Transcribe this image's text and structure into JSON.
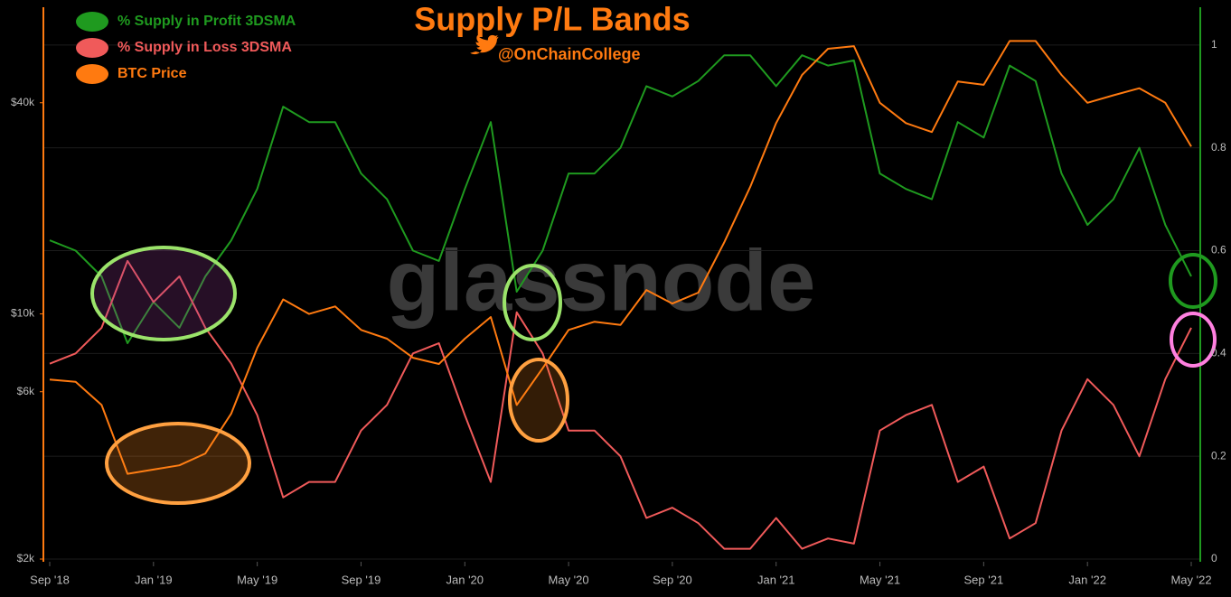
{
  "chart_data": {
    "type": "line",
    "title": "Supply P/L Bands",
    "subtitle": "@OnChainCollege",
    "watermark": "glassnode",
    "x": [
      "2018-09",
      "2018-10",
      "2018-11",
      "2018-12",
      "2019-01",
      "2019-02",
      "2019-03",
      "2019-04",
      "2019-05",
      "2019-06",
      "2019-07",
      "2019-08",
      "2019-09",
      "2019-10",
      "2019-11",
      "2019-12",
      "2020-01",
      "2020-02",
      "2020-03",
      "2020-04",
      "2020-05",
      "2020-06",
      "2020-07",
      "2020-08",
      "2020-09",
      "2020-10",
      "2020-11",
      "2020-12",
      "2021-01",
      "2021-02",
      "2021-03",
      "2021-04",
      "2021-05",
      "2021-06",
      "2021-07",
      "2021-08",
      "2021-09",
      "2021-10",
      "2021-11",
      "2021-12",
      "2022-01",
      "2022-02",
      "2022-03",
      "2022-04",
      "2022-05"
    ],
    "xticks": [
      {
        "value": "2018-09",
        "label": "Sep '18"
      },
      {
        "value": "2019-01",
        "label": "Jan '19"
      },
      {
        "value": "2019-05",
        "label": "May '19"
      },
      {
        "value": "2019-09",
        "label": "Sep '19"
      },
      {
        "value": "2020-01",
        "label": "Jan '20"
      },
      {
        "value": "2020-05",
        "label": "May '20"
      },
      {
        "value": "2020-09",
        "label": "Sep '20"
      },
      {
        "value": "2021-01",
        "label": "Jan '21"
      },
      {
        "value": "2021-05",
        "label": "May '21"
      },
      {
        "value": "2021-09",
        "label": "Sep '21"
      },
      {
        "value": "2022-01",
        "label": "Jan '22"
      },
      {
        "value": "2022-05",
        "label": "May '22"
      }
    ],
    "ylim": [
      2000,
      74000
    ],
    "yscale": "log",
    "yticks": [
      {
        "value": 2000,
        "label": "$2k"
      },
      {
        "value": 6000,
        "label": "$6k"
      },
      {
        "value": 10000,
        "label": "$10k"
      },
      {
        "value": 40000,
        "label": "$40k"
      }
    ],
    "y2lim": [
      0,
      1.07
    ],
    "y2ticks": [
      0,
      0.2,
      0.4,
      0.6,
      0.8,
      1
    ],
    "grid": true,
    "legend": "top-left",
    "series": [
      {
        "name": "% Supply in Profit 3DSMA",
        "color": "#1f9a1f",
        "axis": "y2",
        "values": [
          0.62,
          0.6,
          0.55,
          0.42,
          0.5,
          0.45,
          0.55,
          0.62,
          0.72,
          0.88,
          0.85,
          0.85,
          0.75,
          0.7,
          0.6,
          0.58,
          0.72,
          0.85,
          0.52,
          0.6,
          0.75,
          0.75,
          0.8,
          0.92,
          0.9,
          0.93,
          0.98,
          0.98,
          0.92,
          0.98,
          0.96,
          0.97,
          0.75,
          0.72,
          0.7,
          0.85,
          0.82,
          0.96,
          0.93,
          0.75,
          0.65,
          0.7,
          0.8,
          0.65,
          0.55
        ]
      },
      {
        "name": "% Supply in Loss 3DSMA",
        "color": "#f05a5a",
        "axis": "y2",
        "values": [
          0.38,
          0.4,
          0.45,
          0.58,
          0.5,
          0.55,
          0.45,
          0.38,
          0.28,
          0.12,
          0.15,
          0.15,
          0.25,
          0.3,
          0.4,
          0.42,
          0.28,
          0.15,
          0.48,
          0.4,
          0.25,
          0.25,
          0.2,
          0.08,
          0.1,
          0.07,
          0.02,
          0.02,
          0.08,
          0.02,
          0.04,
          0.03,
          0.25,
          0.28,
          0.3,
          0.15,
          0.18,
          0.04,
          0.07,
          0.25,
          0.35,
          0.3,
          0.2,
          0.35,
          0.45
        ]
      },
      {
        "name": "BTC Price",
        "color": "#ff7a10",
        "axis": "y",
        "values": [
          6500,
          6400,
          5500,
          3500,
          3600,
          3700,
          4000,
          5200,
          8000,
          11000,
          10000,
          10500,
          9000,
          8500,
          7500,
          7200,
          8500,
          9800,
          5500,
          7000,
          9000,
          9500,
          9300,
          11700,
          10700,
          11500,
          16000,
          23000,
          35000,
          48000,
          57000,
          58000,
          40000,
          35000,
          33000,
          46000,
          45000,
          60000,
          60000,
          48000,
          40000,
          42000,
          44000,
          40000,
          30000
        ]
      }
    ]
  }
}
